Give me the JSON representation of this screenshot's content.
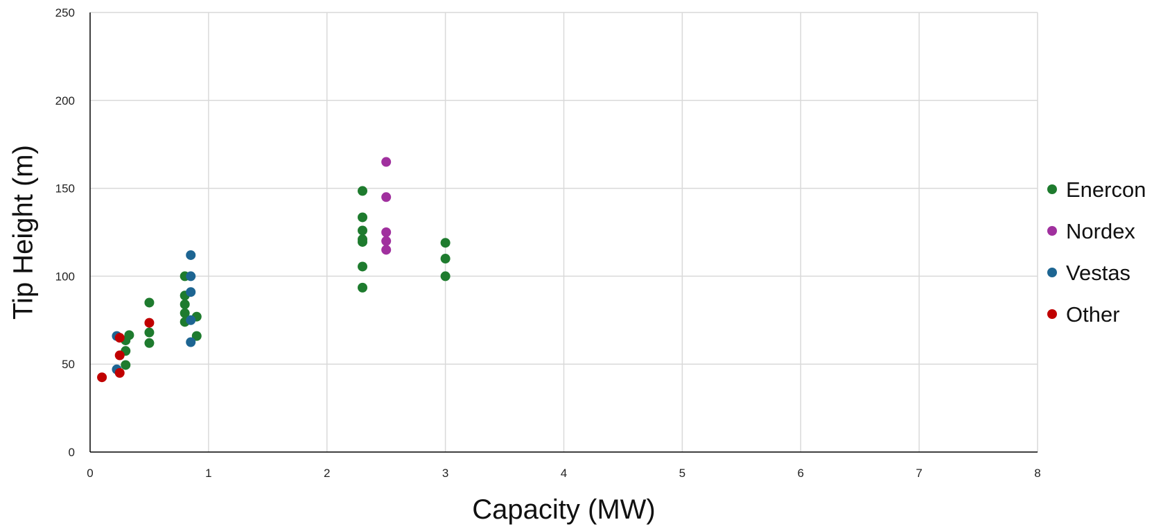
{
  "chart_data": {
    "type": "scatter",
    "title": "",
    "xlabel": "Capacity (MW)",
    "ylabel": "Tip Height (m)",
    "xlim": [
      0,
      8
    ],
    "ylim": [
      0,
      250
    ],
    "xticks": [
      0,
      1,
      2,
      3,
      4,
      5,
      6,
      7,
      8
    ],
    "yticks": [
      0,
      50,
      100,
      150,
      200,
      250
    ],
    "grid": true,
    "legend_position": "right",
    "series": [
      {
        "name": "Enercon",
        "color": "#1e7b2e",
        "points": [
          {
            "x": 0.3,
            "y": 49.5
          },
          {
            "x": 0.3,
            "y": 57.5
          },
          {
            "x": 0.3,
            "y": 63.5
          },
          {
            "x": 0.33,
            "y": 66.5
          },
          {
            "x": 0.5,
            "y": 62
          },
          {
            "x": 0.5,
            "y": 68
          },
          {
            "x": 0.5,
            "y": 85
          },
          {
            "x": 0.8,
            "y": 74
          },
          {
            "x": 0.8,
            "y": 79
          },
          {
            "x": 0.8,
            "y": 84
          },
          {
            "x": 0.8,
            "y": 89
          },
          {
            "x": 0.8,
            "y": 100
          },
          {
            "x": 0.9,
            "y": 66
          },
          {
            "x": 0.9,
            "y": 77
          },
          {
            "x": 2.3,
            "y": 93.5
          },
          {
            "x": 2.3,
            "y": 105.5
          },
          {
            "x": 2.3,
            "y": 119.5
          },
          {
            "x": 2.3,
            "y": 121
          },
          {
            "x": 2.3,
            "y": 126
          },
          {
            "x": 2.3,
            "y": 133.5
          },
          {
            "x": 2.3,
            "y": 148.5
          },
          {
            "x": 3.0,
            "y": 100
          },
          {
            "x": 3.0,
            "y": 110
          },
          {
            "x": 3.0,
            "y": 119
          }
        ]
      },
      {
        "name": "Nordex",
        "color": "#a0309e",
        "points": [
          {
            "x": 2.5,
            "y": 115
          },
          {
            "x": 2.5,
            "y": 120
          },
          {
            "x": 2.5,
            "y": 125
          },
          {
            "x": 2.5,
            "y": 145
          },
          {
            "x": 2.5,
            "y": 165
          }
        ]
      },
      {
        "name": "Vestas",
        "color": "#1d6592",
        "points": [
          {
            "x": 0.225,
            "y": 47
          },
          {
            "x": 0.225,
            "y": 66
          },
          {
            "x": 0.85,
            "y": 62.5
          },
          {
            "x": 0.85,
            "y": 75
          },
          {
            "x": 0.85,
            "y": 91
          },
          {
            "x": 0.85,
            "y": 100
          },
          {
            "x": 0.85,
            "y": 112
          }
        ]
      },
      {
        "name": "Other",
        "color": "#c00000",
        "points": [
          {
            "x": 0.1,
            "y": 42.5
          },
          {
            "x": 0.25,
            "y": 45
          },
          {
            "x": 0.25,
            "y": 55
          },
          {
            "x": 0.25,
            "y": 65
          },
          {
            "x": 0.5,
            "y": 73.5
          }
        ]
      }
    ]
  }
}
